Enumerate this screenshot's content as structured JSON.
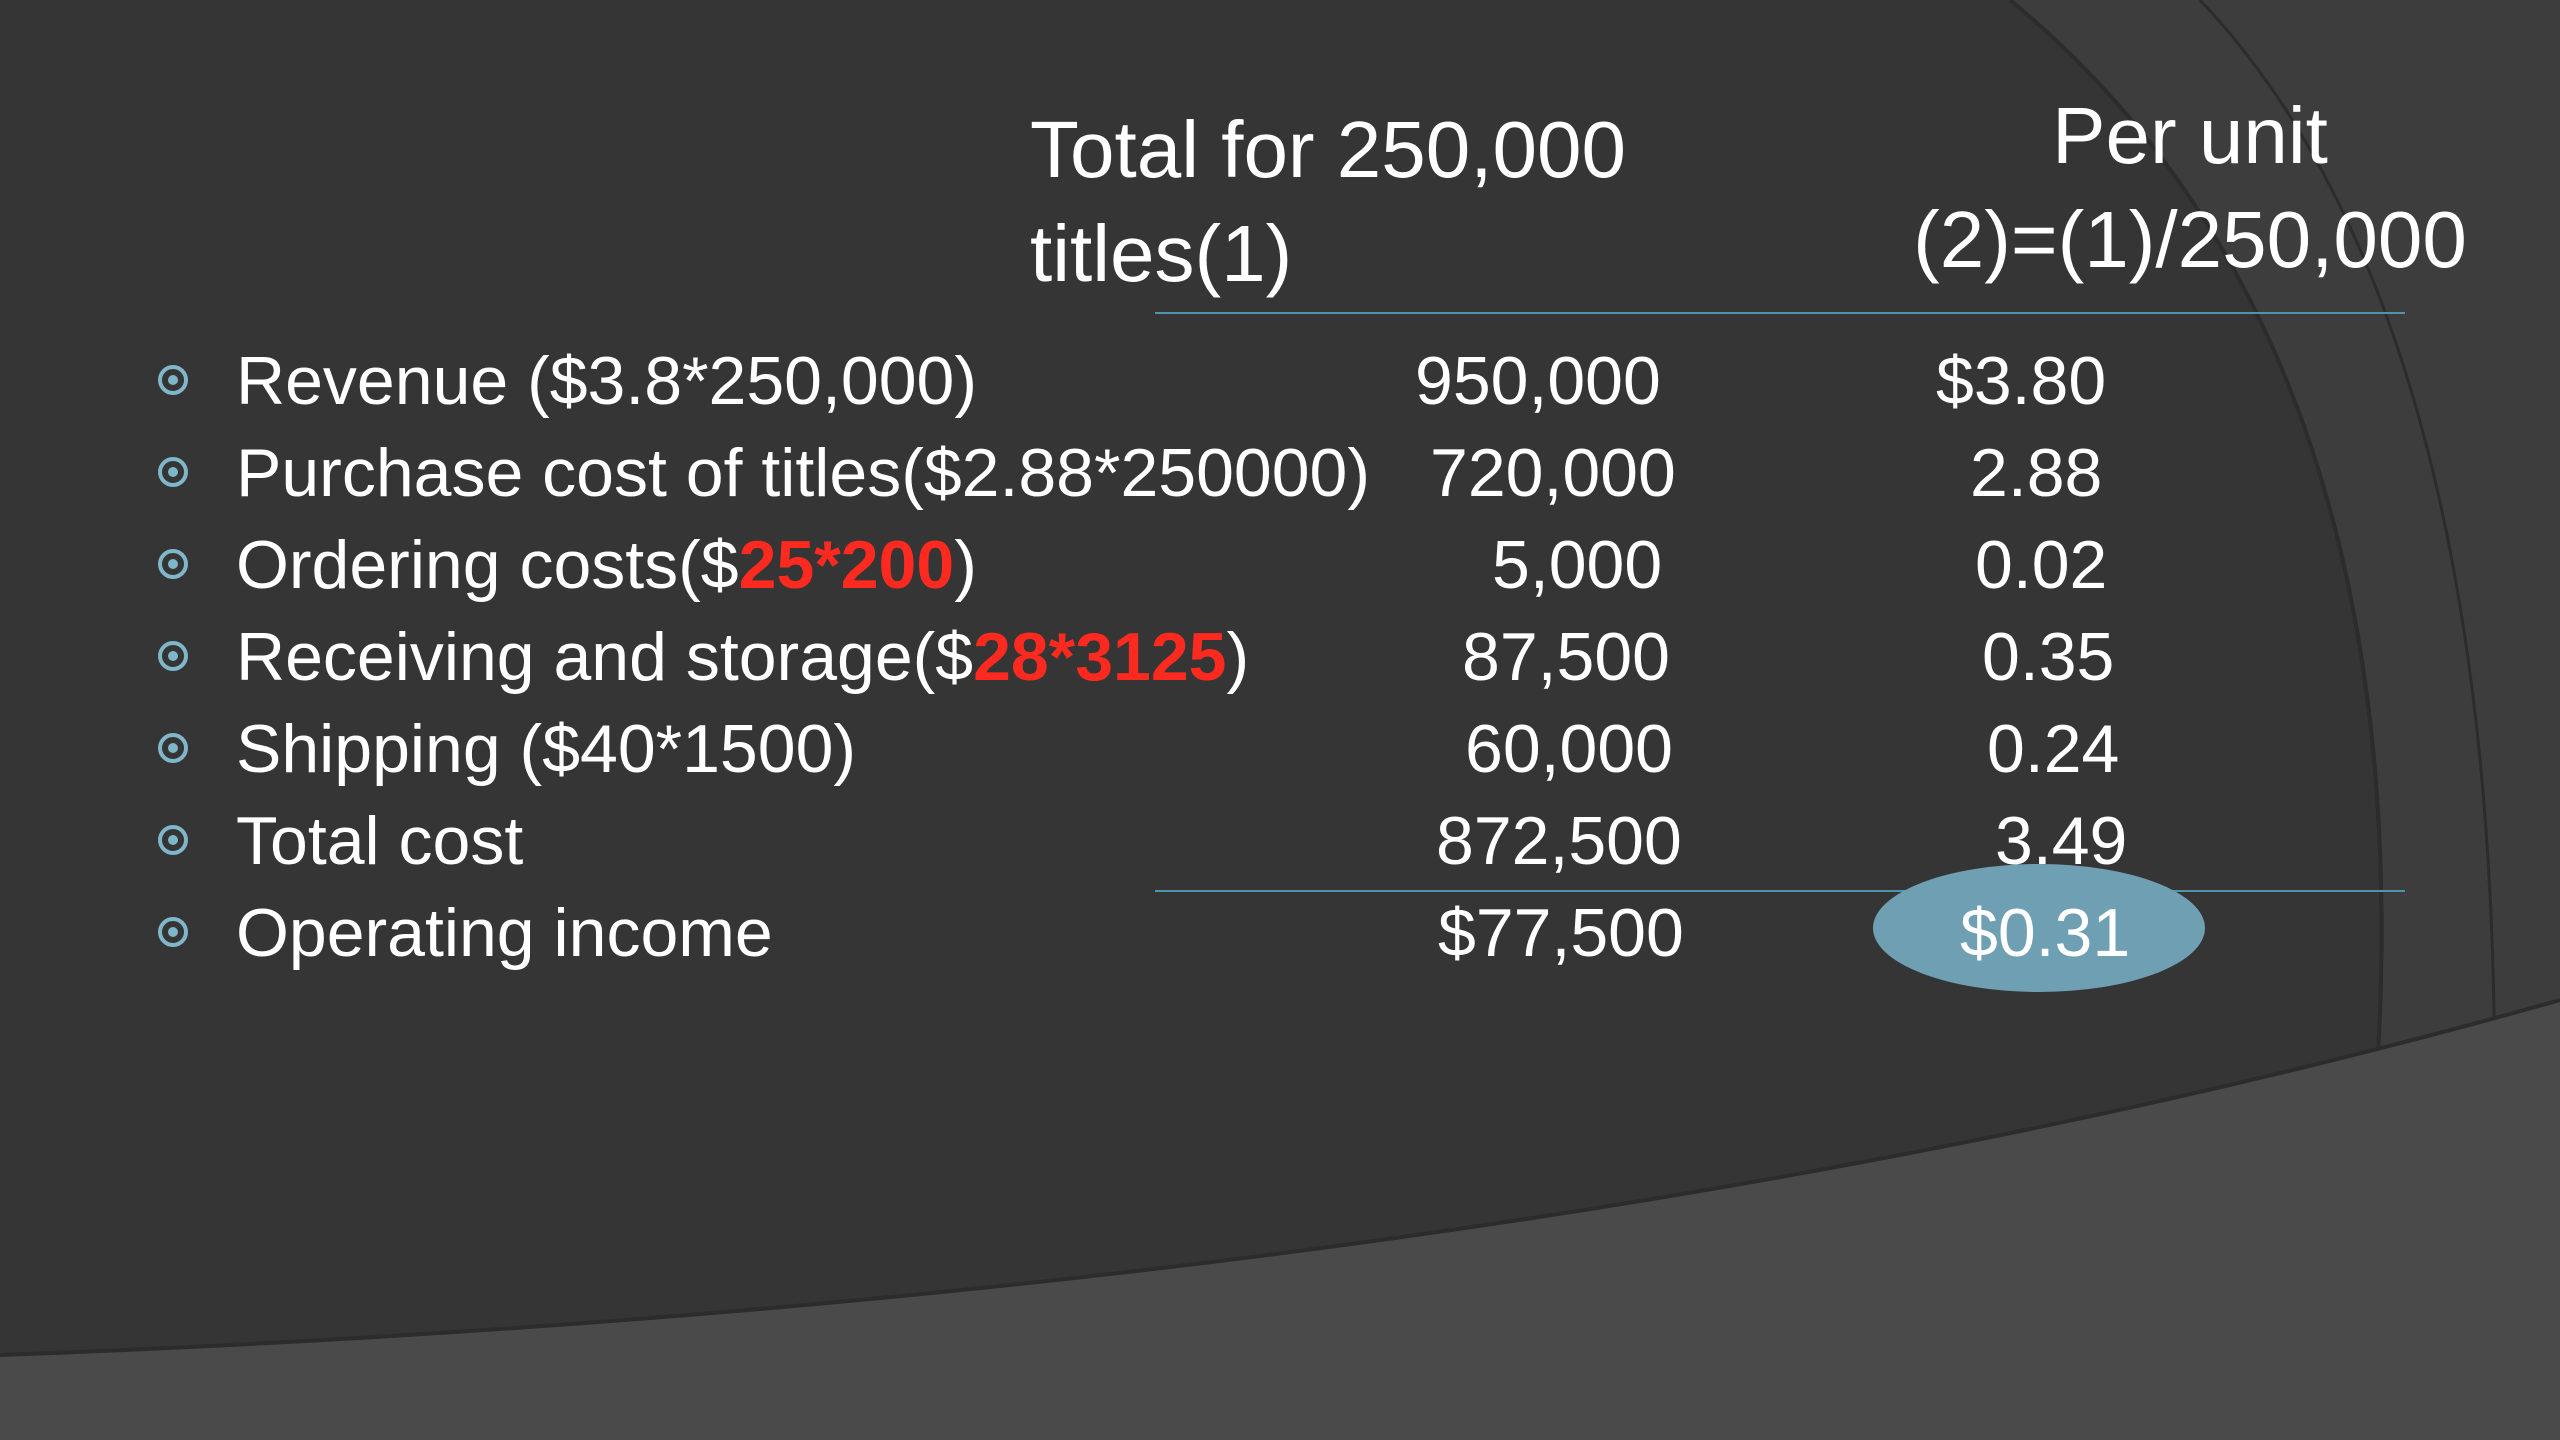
{
  "colors": {
    "background": "#353535",
    "text": "#ffffff",
    "accent": "#4f93ad",
    "highlight_red": "#ff2a1f",
    "ellipse": "#6e9fb2",
    "bullet": "#7fb6c8"
  },
  "header": {
    "total_line1": "Total for 250,000",
    "total_line2": "titles(1)",
    "unit_line1": "Per unit",
    "unit_line2": "(2)=(1)/250,000"
  },
  "rows": [
    {
      "label_pre": "Revenue ($3.8*250,000)",
      "label_hl": "",
      "label_post": "",
      "total": "950,000",
      "unit": "$3.80"
    },
    {
      "label_pre": "Purchase cost of titles($2.88*250000)",
      "label_hl": "",
      "label_post": "",
      "total": "720,000",
      "unit": "2.88"
    },
    {
      "label_pre": "Ordering costs($",
      "label_hl": "25*200",
      "label_post": ")",
      "total": "5,000",
      "unit": "0.02"
    },
    {
      "label_pre": "Receiving and storage($",
      "label_hl": "28*3125",
      "label_post": ")",
      "total": "87,500",
      "unit": "0.35"
    },
    {
      "label_pre": "Shipping ($40*1500)",
      "label_hl": "",
      "label_post": "",
      "total": "60,000",
      "unit": "0.24"
    },
    {
      "label_pre": "Total cost",
      "label_hl": "",
      "label_post": "",
      "total": "872,500",
      "unit": "3.49"
    },
    {
      "label_pre": "Operating income",
      "label_hl": "",
      "label_post": "",
      "total": "$77,500",
      "unit": "$0.31"
    }
  ]
}
